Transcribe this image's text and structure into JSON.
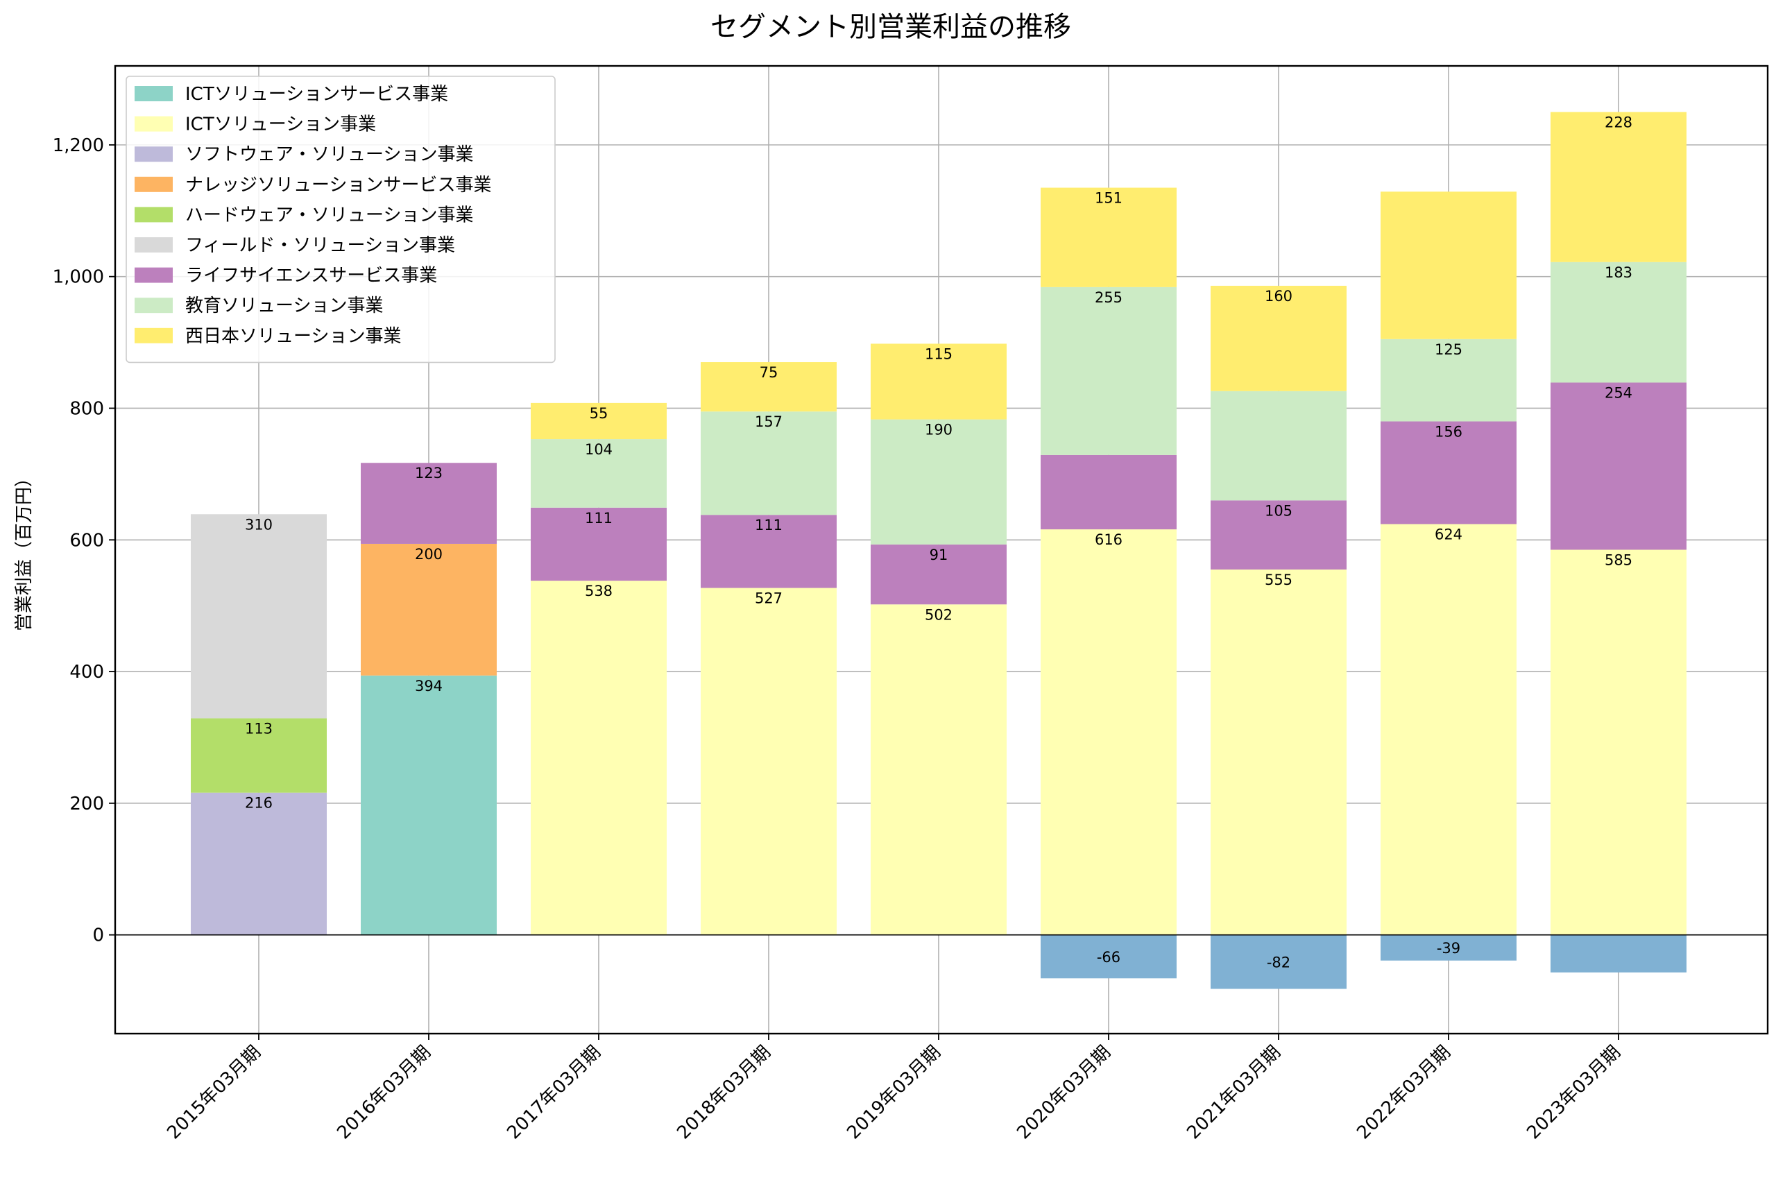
{
  "chart_data": {
    "type": "bar",
    "stacked": true,
    "title": "セグメント別営業利益の推移",
    "xlabel": "",
    "ylabel": "営業利益（百万円）",
    "ylim": [
      -150,
      1320
    ],
    "yticks": [
      0,
      200,
      400,
      600,
      800,
      1000,
      1200
    ],
    "ytick_labels": [
      "0",
      "200",
      "400",
      "600",
      "800",
      "1,000",
      "1,200"
    ],
    "grid": true,
    "legend_position": "top-left",
    "categories": [
      "2015年03月期",
      "2016年03月期",
      "2017年03月期",
      "2018年03月期",
      "2019年03月期",
      "2020年03月期",
      "2021年03月期",
      "2022年03月期",
      "2023年03月期"
    ],
    "series": [
      {
        "name": "ICTソリューションサービス事業",
        "color": "#8dd3c7",
        "values": [
          0,
          394,
          0,
          0,
          0,
          0,
          0,
          0,
          0
        ]
      },
      {
        "name": "ICTソリューション事業",
        "color": "#ffffb3",
        "values": [
          0,
          0,
          538,
          527,
          502,
          616,
          555,
          624,
          585
        ]
      },
      {
        "name": "ソフトウェア・ソリューション事業",
        "color": "#bebada",
        "values": [
          216,
          0,
          0,
          0,
          0,
          0,
          0,
          0,
          0
        ]
      },
      {
        "name": "ナレッジソリューションサービス事業",
        "color": "#fdb462",
        "values": [
          0,
          200,
          0,
          0,
          0,
          0,
          0,
          0,
          0
        ]
      },
      {
        "name": "ハードウェア・ソリューション事業",
        "color": "#b3de69",
        "values": [
          113,
          0,
          0,
          0,
          0,
          0,
          0,
          0,
          0
        ]
      },
      {
        "name": "フィールド・ソリューション事業",
        "color": "#d9d9d9",
        "values": [
          310,
          0,
          0,
          0,
          0,
          0,
          0,
          0,
          0
        ]
      },
      {
        "name": "ライフサイエンスサービス事業",
        "color": "#bc80bd",
        "values": [
          0,
          123,
          111,
          111,
          91,
          113,
          105,
          156,
          254
        ]
      },
      {
        "name": "教育ソリューション事業",
        "color": "#ccebc5",
        "values": [
          0,
          0,
          104,
          157,
          190,
          255,
          166,
          125,
          183
        ]
      },
      {
        "name": "西日本ソリューション事業",
        "color": "#ffed6f",
        "values": [
          0,
          0,
          55,
          75,
          115,
          151,
          160,
          224,
          228
        ]
      }
    ],
    "negative_series": {
      "color": "#80b1d3",
      "values": [
        0,
        0,
        0,
        0,
        0,
        -66,
        -82,
        -39,
        -57
      ]
    },
    "data_labels": [
      [
        {
          "series": 2,
          "text": "216"
        },
        {
          "series": 4,
          "text": "113"
        },
        {
          "series": 5,
          "text": "310"
        }
      ],
      [
        {
          "series": 0,
          "text": "394"
        },
        {
          "series": 3,
          "text": "200"
        },
        {
          "series": 6,
          "text": "123"
        }
      ],
      [
        {
          "series": 1,
          "text": "538"
        },
        {
          "series": 6,
          "text": "111"
        },
        {
          "series": 7,
          "text": "104"
        },
        {
          "series": 8,
          "text": "55"
        }
      ],
      [
        {
          "series": 1,
          "text": "527"
        },
        {
          "series": 6,
          "text": "111"
        },
        {
          "series": 7,
          "text": "157"
        },
        {
          "series": 8,
          "text": "75"
        }
      ],
      [
        {
          "series": 1,
          "text": "502"
        },
        {
          "series": 6,
          "text": "91"
        },
        {
          "series": 7,
          "text": "190"
        },
        {
          "series": 8,
          "text": "115"
        }
      ],
      [
        {
          "series": 1,
          "text": "616"
        },
        {
          "series": 7,
          "text": "255"
        },
        {
          "series": 8,
          "text": "151"
        },
        {
          "series": -1,
          "text": "-66"
        }
      ],
      [
        {
          "series": 1,
          "text": "555"
        },
        {
          "series": 6,
          "text": "105"
        },
        {
          "series": 8,
          "text": "160"
        },
        {
          "series": -1,
          "text": "-82"
        }
      ],
      [
        {
          "series": 1,
          "text": "624"
        },
        {
          "series": 6,
          "text": "156"
        },
        {
          "series": 7,
          "text": "125"
        },
        {
          "series": -1,
          "text": "-39"
        }
      ],
      [
        {
          "series": 1,
          "text": "585"
        },
        {
          "series": 6,
          "text": "254"
        },
        {
          "series": 7,
          "text": "183"
        },
        {
          "series": 8,
          "text": "228"
        }
      ]
    ]
  }
}
